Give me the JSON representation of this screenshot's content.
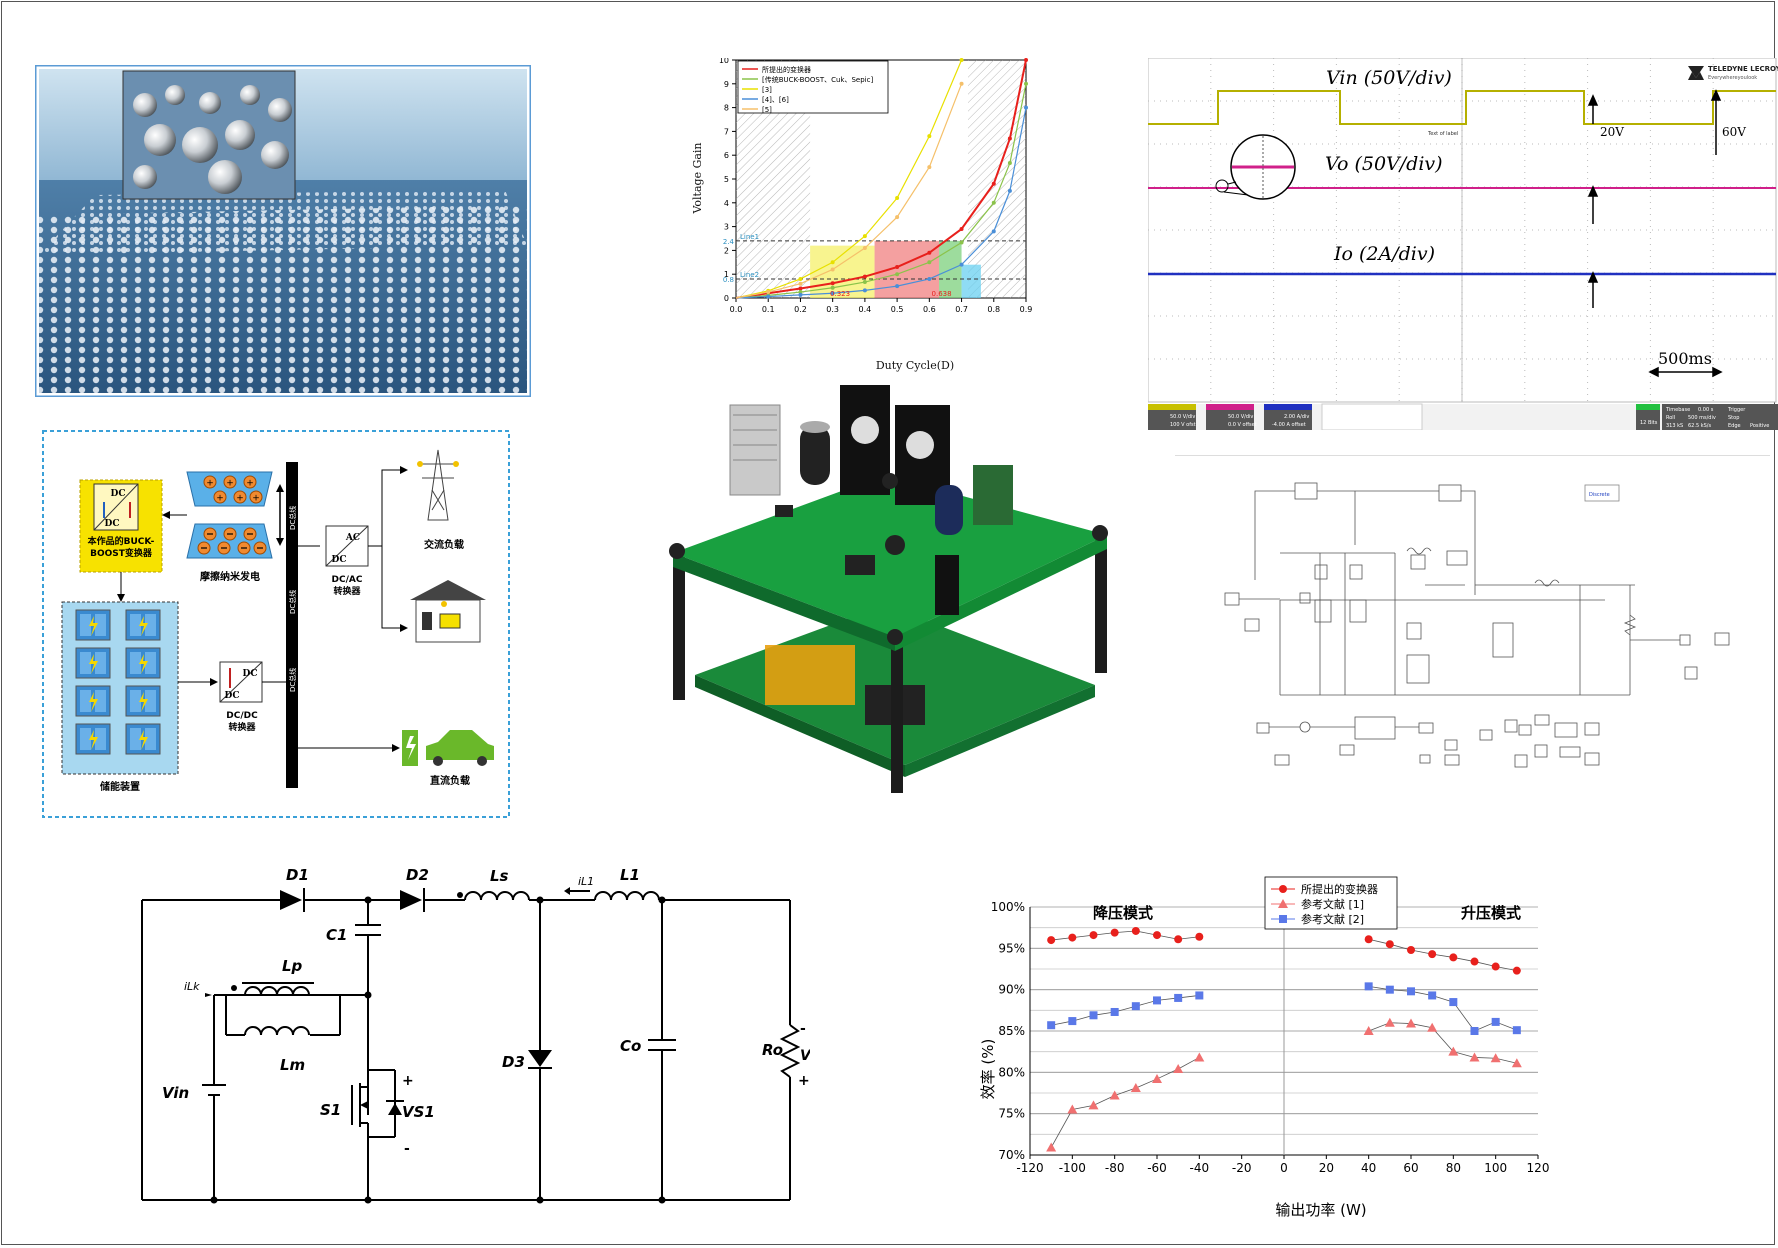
{
  "panels": {
    "tribo_system": {
      "converter_label": [
        "本作品的BUCK-",
        "BOOST变换器"
      ],
      "tribo_label": "摩擦纳米发电",
      "storage_label": "储能装置",
      "dcac_label": [
        "DC/AC",
        "转换器"
      ],
      "dcdc_label": [
        "DC/DC",
        "转换器"
      ],
      "bus_label": "DC总线",
      "ac_load": "交流负载",
      "dc_load": "直流负载",
      "dc": "DC",
      "ac": "AC"
    },
    "gain_chart": {
      "legend": [
        "所提出的变换器",
        "[传统BUCK-BOOST、Cuk、Sepic]",
        "[3]",
        "[4]、[6]",
        "[5]"
      ],
      "xlabel": "Duty Cycle(D)",
      "ylabel": "Voltage Gain",
      "line1": "Line1",
      "line2": "Line2",
      "ann": [
        "0.323",
        "0.638"
      ],
      "y_marks": [
        "2.4",
        "0.8"
      ]
    },
    "scope": {
      "brand": "TELEDYNE LECROY",
      "brand_sub": "Everywhereyoulook",
      "vin": "Vin (50V/div)",
      "vo": "Vo (50V/div)",
      "io": "Io (2A/div)",
      "step1": "20V",
      "step2": "60V",
      "time": "500ms",
      "footer": [
        "50.0 V/div",
        "100 V ofst",
        "50.0 V/div",
        "0.0 V offset",
        "2.00 A/div",
        "-4.00 A offset",
        "12 Bits",
        "Timebase",
        "0.00 s",
        "Roll",
        "500 ms/div",
        "313 kS",
        "62.5 kS/s",
        "Trigger",
        "Stop",
        "Edge",
        "Positive"
      ],
      "small": "Text of label"
    },
    "circuit": {
      "D1": "D1",
      "D2": "D2",
      "D3": "D3",
      "Ls": "Ls",
      "L1": "L1",
      "iL1": "iL1",
      "C1": "C1",
      "Lp": "Lp",
      "Lm": "Lm",
      "iLk": "iLk",
      "Vin": "Vin",
      "S1": "S1",
      "VS1": "VS1",
      "Co": "Co",
      "Ro": "Ro",
      "Vo": "Vo",
      "plus": "+",
      "minus": "-"
    },
    "efficiency": {
      "title_left": "降压模式",
      "title_right": "升压模式",
      "legend": [
        "所提出的变换器",
        "参考文献 [1]",
        "参考文献 [2]"
      ],
      "ylabel": "效率 (%)",
      "xlabel": "输出功率 (W)"
    },
    "simulink": {
      "discrete": "Discrete"
    }
  },
  "chart_data": [
    {
      "type": "line",
      "title": "",
      "xlabel": "Duty Cycle(D)",
      "ylabel": "Voltage Gain",
      "xlim": [
        0,
        0.9
      ],
      "ylim": [
        0,
        10
      ],
      "x_ticks": [
        0.0,
        0.1,
        0.2,
        0.3,
        0.4,
        0.5,
        0.6,
        0.7,
        0.8,
        0.9
      ],
      "y_ticks": [
        0,
        1,
        2,
        3,
        4,
        5,
        6,
        7,
        8,
        9,
        10
      ],
      "series": [
        {
          "name": "所提出的变换器",
          "color": "#e8201c",
          "x": [
            0,
            0.1,
            0.2,
            0.3,
            0.4,
            0.5,
            0.6,
            0.7,
            0.8,
            0.85,
            0.9
          ],
          "y": [
            0,
            0.2,
            0.4,
            0.62,
            0.9,
            1.3,
            1.9,
            2.9,
            4.8,
            6.7,
            10
          ]
        },
        {
          "name": "[传统BUCK-BOOST、Cuk、Sepic]",
          "color": "#8bc34a",
          "x": [
            0,
            0.1,
            0.2,
            0.3,
            0.4,
            0.5,
            0.6,
            0.7,
            0.8,
            0.85,
            0.9
          ],
          "y": [
            0,
            0.11,
            0.25,
            0.43,
            0.67,
            1.0,
            1.5,
            2.33,
            4.0,
            5.67,
            9.0
          ]
        },
        {
          "name": "[3]",
          "color": "#e8e000",
          "x": [
            0,
            0.1,
            0.2,
            0.3,
            0.4,
            0.5,
            0.6,
            0.7
          ],
          "y": [
            0,
            0.3,
            0.8,
            1.5,
            2.6,
            4.2,
            6.8,
            10
          ]
        },
        {
          "name": "[4]、[6]",
          "color": "#4a8fd8",
          "x": [
            0,
            0.1,
            0.2,
            0.3,
            0.4,
            0.5,
            0.6,
            0.7,
            0.8,
            0.85,
            0.9
          ],
          "y": [
            0,
            0.06,
            0.13,
            0.2,
            0.32,
            0.5,
            0.8,
            1.4,
            2.8,
            4.5,
            8.0
          ]
        },
        {
          "name": "[5]",
          "color": "#f5c06a",
          "x": [
            0,
            0.1,
            0.2,
            0.3,
            0.4,
            0.5,
            0.6,
            0.7
          ],
          "y": [
            0,
            0.25,
            0.6,
            1.2,
            2.1,
            3.4,
            5.5,
            9.0
          ]
        }
      ],
      "hlines": [
        2.4,
        0.8
      ],
      "annotations": [
        0.323,
        0.638
      ]
    },
    {
      "type": "line",
      "title": "",
      "xlabel": "输出功率 (W)",
      "ylabel": "效率 (%)",
      "xlim": [
        -120,
        120
      ],
      "ylim": [
        70,
        100
      ],
      "x_ticks": [
        -120,
        -100,
        -80,
        -60,
        -40,
        -20,
        0,
        20,
        40,
        60,
        80,
        100,
        120
      ],
      "y_ticks": [
        70,
        75,
        80,
        85,
        90,
        95,
        100
      ],
      "series": [
        {
          "name": "所提出的变换器",
          "color": "#e8201c",
          "marker": "circle",
          "buck": {
            "x": [
              -110,
              -100,
              -90,
              -80,
              -70,
              -60,
              -50,
              -40
            ],
            "y": [
              96.0,
              96.3,
              96.6,
              96.9,
              97.1,
              96.6,
              96.1,
              96.4
            ]
          },
          "boost": {
            "x": [
              40,
              50,
              60,
              70,
              80,
              90,
              100,
              110
            ],
            "y": [
              96.1,
              95.5,
              94.8,
              94.3,
              93.9,
              93.4,
              92.8,
              92.3
            ]
          }
        },
        {
          "name": "参考文献 [1]",
          "color": "#f07070",
          "marker": "triangle",
          "buck": {
            "x": [
              -110,
              -100,
              -90,
              -80,
              -70,
              -60,
              -50,
              -40
            ],
            "y": [
              70.9,
              75.5,
              76.0,
              77.2,
              78.1,
              79.2,
              80.4,
              81.8
            ]
          },
          "boost": {
            "x": [
              40,
              50,
              60,
              70,
              80,
              90,
              100,
              110
            ],
            "y": [
              85.0,
              86.0,
              85.9,
              85.4,
              82.5,
              81.8,
              81.7,
              81.1
            ]
          }
        },
        {
          "name": "参考文献 [2]",
          "color": "#5a78e8",
          "marker": "square",
          "buck": {
            "x": [
              -110,
              -100,
              -90,
              -80,
              -70,
              -60,
              -50,
              -40
            ],
            "y": [
              85.7,
              86.2,
              86.9,
              87.3,
              88.0,
              88.7,
              89.0,
              89.3
            ]
          },
          "boost": {
            "x": [
              40,
              50,
              60,
              70,
              80,
              90,
              100,
              110
            ],
            "y": [
              90.4,
              90.0,
              89.8,
              89.3,
              88.5,
              85.0,
              86.1,
              85.1
            ]
          }
        }
      ]
    }
  ]
}
